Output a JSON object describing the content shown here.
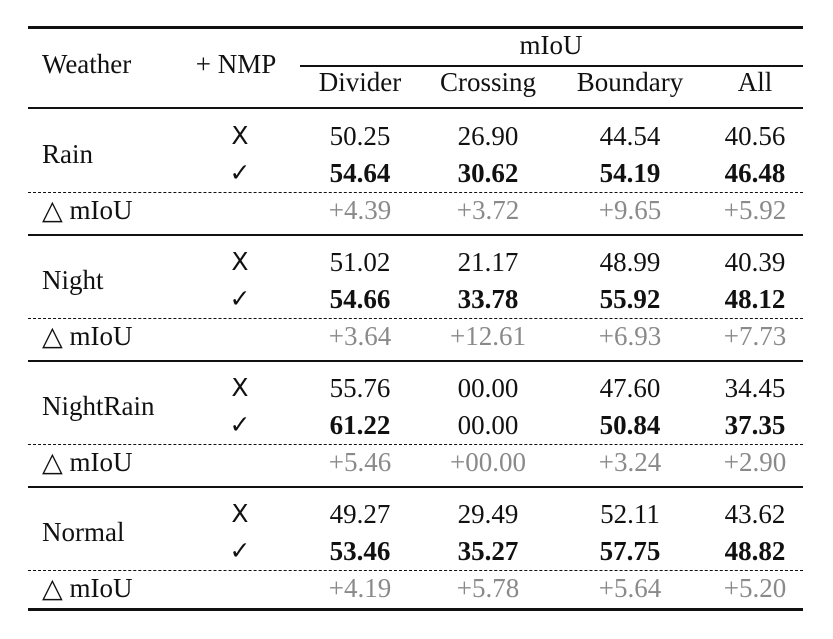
{
  "table": {
    "header": {
      "weather": "Weather",
      "nmp": "+ NMP",
      "group": "mIoU",
      "columns": [
        "Divider",
        "Crossing",
        "Boundary",
        "All"
      ]
    },
    "groups": [
      {
        "condition": "Rain",
        "rows": [
          {
            "mark": "X",
            "values": [
              "50.25",
              "26.90",
              "44.54",
              "40.56"
            ],
            "bold": [
              false,
              false,
              false,
              false
            ]
          },
          {
            "mark": "✓",
            "values": [
              "54.64",
              "30.62",
              "54.19",
              "46.48"
            ],
            "bold": [
              true,
              true,
              true,
              true
            ]
          }
        ],
        "delta_label": "△ mIoU",
        "delta": [
          "+4.39",
          "+3.72",
          "+9.65",
          "+5.92"
        ]
      },
      {
        "condition": "Night",
        "rows": [
          {
            "mark": "X",
            "values": [
              "51.02",
              "21.17",
              "48.99",
              "40.39"
            ],
            "bold": [
              false,
              false,
              false,
              false
            ]
          },
          {
            "mark": "✓",
            "values": [
              "54.66",
              "33.78",
              "55.92",
              "48.12"
            ],
            "bold": [
              true,
              true,
              true,
              true
            ]
          }
        ],
        "delta_label": "△ mIoU",
        "delta": [
          "+3.64",
          "+12.61",
          "+6.93",
          "+7.73"
        ]
      },
      {
        "condition": "NightRain",
        "rows": [
          {
            "mark": "X",
            "values": [
              "55.76",
              "00.00",
              "47.60",
              "34.45"
            ],
            "bold": [
              false,
              false,
              false,
              false
            ]
          },
          {
            "mark": "✓",
            "values": [
              "61.22",
              "00.00",
              "50.84",
              "37.35"
            ],
            "bold": [
              true,
              false,
              true,
              true
            ]
          }
        ],
        "delta_label": "△ mIoU",
        "delta": [
          "+5.46",
          "+00.00",
          "+3.24",
          "+2.90"
        ]
      },
      {
        "condition": "Normal",
        "rows": [
          {
            "mark": "X",
            "values": [
              "49.27",
              "29.49",
              "52.11",
              "43.62"
            ],
            "bold": [
              false,
              false,
              false,
              false
            ]
          },
          {
            "mark": "✓",
            "values": [
              "53.46",
              "35.27",
              "57.75",
              "48.82"
            ],
            "bold": [
              true,
              true,
              true,
              true
            ]
          }
        ],
        "delta_label": "△ mIoU",
        "delta": [
          "+4.19",
          "+5.78",
          "+5.64",
          "+5.20"
        ]
      }
    ],
    "colors": {
      "delta_text": "#8a8a8a",
      "text": "#111111",
      "rules": "#111111"
    }
  }
}
